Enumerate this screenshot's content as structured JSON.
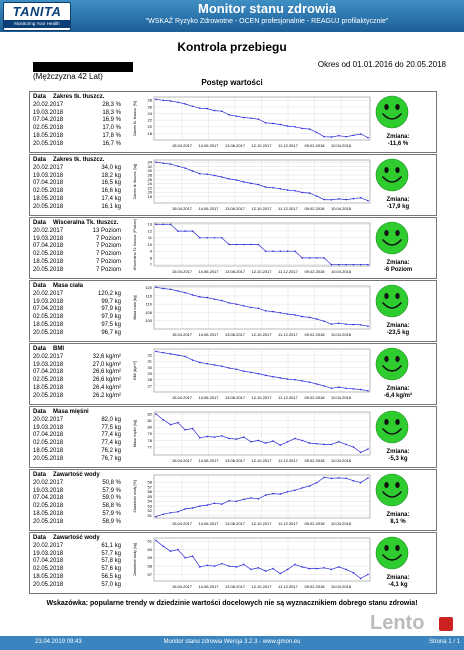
{
  "header": {
    "logo": "TANITA",
    "logo_sub": "Monitoring Your Health",
    "title": "Monitor stanu zdrowia",
    "subtitle": "\"WSKAŹ Ryzyko Zdrowotne - OCEN profesjonalnie - REAGUJ profilaktycznie\""
  },
  "page": {
    "title": "Kontrola przebiegu",
    "period": "Okres od 01.01.2016 do 20.05.2018",
    "person": "(Mężczyzna 42 Lat)",
    "subtitle": "Postęp wartości",
    "hint": "Wskazówka: popularne trendy w dziedzinie wartości docelowych nie są wyznacznikiem dobrego stanu zdrowia!"
  },
  "x_ticks": [
    "15.04.2017",
    "14.06.2017",
    "13.08.2017",
    "12.10.2017",
    "11.12.2017",
    "09.02.2018",
    "10.04.2018"
  ],
  "change_label": "Zmiana:",
  "colors": {
    "header": "#2c75b0",
    "line": "#2a2ad8",
    "face": "#2ecc2e",
    "footer": "#3a85bf"
  },
  "sections": [
    {
      "header": [
        "Data",
        "Zakres tk. tłuszcz."
      ],
      "rows": [
        [
          "20.02.2017",
          "28,3 %"
        ],
        [
          "19.03.2018",
          "18,3 %"
        ],
        [
          "07.04.2018",
          "16,9 %"
        ],
        [
          "02.05.2018",
          "17,0 %"
        ],
        [
          "18.05.2018",
          "17,8 %"
        ],
        [
          "20.05.2018",
          "16,7 %"
        ]
      ],
      "ylabel": "Zakres tk. tłuszcz. [%]",
      "yticks": [
        "28",
        "26",
        "24",
        "22",
        "20",
        "18"
      ],
      "ylim": [
        16,
        29
      ],
      "points": [
        28.3,
        28.0,
        27.8,
        27.4,
        26.9,
        26.2,
        25.6,
        25.5,
        24.9,
        24.7,
        23.6,
        23.2,
        22.8,
        22.6,
        22.3,
        21.2,
        21.0,
        20.7,
        20.2,
        20.0,
        19.5,
        19.3,
        18.3,
        17.0,
        16.9,
        17.3,
        17.0,
        17.4,
        17.8,
        16.7
      ],
      "change": "-11,6 %"
    },
    {
      "header": [
        "Data",
        "Zakres tk. tłuszcz."
      ],
      "rows": [
        [
          "20.02.2017",
          "34,0 kg"
        ],
        [
          "19.03.2018",
          "18,2 kg"
        ],
        [
          "07.04.2018",
          "16,5 kg"
        ],
        [
          "02.05.2018",
          "16,6 kg"
        ],
        [
          "18.05.2018",
          "17,4 kg"
        ],
        [
          "20.05.2018",
          "16,1 kg"
        ]
      ],
      "ylabel": "Zakres tk. tłuszcz. [kg]",
      "yticks": [
        "34",
        "32",
        "30",
        "28",
        "26",
        "24",
        "22",
        "20",
        "18"
      ],
      "ylim": [
        15,
        35
      ],
      "points": [
        34.0,
        33.5,
        33.1,
        32.1,
        31.2,
        29.9,
        28.6,
        28.4,
        27.8,
        27.1,
        26.2,
        25.7,
        24.8,
        24.1,
        23.6,
        22.4,
        22.1,
        21.6,
        21.0,
        20.7,
        19.9,
        19.6,
        18.2,
        16.6,
        16.5,
        16.9,
        16.6,
        17.0,
        17.4,
        16.1
      ],
      "change": "-17,9 kg"
    },
    {
      "header": [
        "Data",
        "Wisceralna Tk. tłuszcz."
      ],
      "rows": [
        [
          "20.02.2017",
          "13 Poziom"
        ],
        [
          "19.03.2018",
          "7 Poziom"
        ],
        [
          "07.04.2018",
          "7 Poziom"
        ],
        [
          "02.05.2018",
          "7 Poziom"
        ],
        [
          "18.05.2018",
          "7 Poziom"
        ],
        [
          "20.05.2018",
          "7 Poziom"
        ]
      ],
      "ylabel": "Wisceralna Tk. tłuszcz. [Poziom]",
      "yticks": [
        "13",
        "12",
        "11",
        "10",
        "9",
        "8",
        "7"
      ],
      "ylim": [
        6.8,
        13.2
      ],
      "points": [
        13,
        13,
        13,
        12,
        12,
        12,
        11,
        11,
        11,
        11,
        10,
        10,
        10,
        10,
        10,
        9,
        9,
        9,
        9,
        9,
        8,
        8,
        8,
        8,
        7,
        7,
        7,
        7,
        7,
        7
      ],
      "change": "-6 Poziom"
    },
    {
      "header": [
        "Data",
        "Masa ciała"
      ],
      "rows": [
        [
          "20.02.2017",
          "120,2 kg"
        ],
        [
          "19.03.2018",
          "99,7 kg"
        ],
        [
          "07.04.2018",
          "97,9 kg"
        ],
        [
          "02.05.2018",
          "97,9 kg"
        ],
        [
          "18.05.2018",
          "97,5 kg"
        ],
        [
          "20.05.2018",
          "96,7 kg"
        ]
      ],
      "ylabel": "Masa ciała [kg]",
      "yticks": [
        "120",
        "115",
        "110",
        "105",
        "100"
      ],
      "ylim": [
        95,
        121
      ],
      "points": [
        120.2,
        119.5,
        119.0,
        118.0,
        117.0,
        115.6,
        114.4,
        114.0,
        113.0,
        112.2,
        110.8,
        110.0,
        109.0,
        108.0,
        107.5,
        106.0,
        105.5,
        104.8,
        104.0,
        103.5,
        102.5,
        102.0,
        101.0,
        99.7,
        97.9,
        98.5,
        97.9,
        97.7,
        97.5,
        96.7
      ],
      "change": "-23,5 kg"
    },
    {
      "header": [
        "Data",
        "BMI"
      ],
      "rows": [
        [
          "20.02.2017",
          "32,6 kg/m²"
        ],
        [
          "19.03.2018",
          "27,0 kg/m²"
        ],
        [
          "07.04.2018",
          "26,6 kg/m²"
        ],
        [
          "02.05.2018",
          "26,6 kg/m²"
        ],
        [
          "18.05.2018",
          "26,4 kg/m²"
        ],
        [
          "20.05.2018",
          "26,2 kg/m²"
        ]
      ],
      "ylabel": "BMI [kg/m²]",
      "yticks": [
        "32",
        "31",
        "30",
        "29",
        "28",
        "27"
      ],
      "ylim": [
        26,
        33
      ],
      "points": [
        32.6,
        32.4,
        32.2,
        32.0,
        31.8,
        31.2,
        30.8,
        30.6,
        30.4,
        30.2,
        29.9,
        29.7,
        29.4,
        29.2,
        29.0,
        28.7,
        28.5,
        28.3,
        28.1,
        28.0,
        27.8,
        27.6,
        27.3,
        27.0,
        26.6,
        26.8,
        26.6,
        26.5,
        26.4,
        26.2
      ],
      "change": "-6,4 kg/m²"
    },
    {
      "header": [
        "Data",
        "Masa mięśni"
      ],
      "rows": [
        [
          "20.02.2017",
          "82,0 kg"
        ],
        [
          "19.03.2018",
          "77,5 kg"
        ],
        [
          "07.04.2018",
          "77,4 kg"
        ],
        [
          "02.05.2018",
          "77,4 kg"
        ],
        [
          "18.05.2018",
          "76,2 kg"
        ],
        [
          "20.05.2018",
          "76,7 kg"
        ]
      ],
      "ylabel": "Masa mięśni [kg]",
      "yticks": [
        "82",
        "81",
        "80",
        "79",
        "78",
        "77"
      ],
      "ylim": [
        75.8,
        82.3
      ],
      "points": [
        82.0,
        81.1,
        80.4,
        80.7,
        79.6,
        79.8,
        78.4,
        78.6,
        78.5,
        78.7,
        78.3,
        78.2,
        78.5,
        77.8,
        78.0,
        77.6,
        77.9,
        77.3,
        77.8,
        78.3,
        78.0,
        77.6,
        77.5,
        77.4,
        77.4,
        77.8,
        77.4,
        77.0,
        76.2,
        76.7
      ],
      "change": "-5,3 kg"
    },
    {
      "header": [
        "Data",
        "Zawartość wody"
      ],
      "rows": [
        [
          "20.02.2017",
          "50,8 %"
        ],
        [
          "19.03.2018",
          "57,9 %"
        ],
        [
          "07.04.2018",
          "59,0 %"
        ],
        [
          "02.05.2018",
          "58,8 %"
        ],
        [
          "18.05.2018",
          "57,9 %"
        ],
        [
          "20.05.2018",
          "58,9 %"
        ]
      ],
      "ylabel": "Zawartość wody [%]",
      "yticks": [
        "58",
        "57",
        "56",
        "55",
        "54",
        "53",
        "52",
        "51"
      ],
      "ylim": [
        50.5,
        59.5
      ],
      "points": [
        50.8,
        51.3,
        51.6,
        51.8,
        52.4,
        52.6,
        53.0,
        53.2,
        53.6,
        53.4,
        54.1,
        54.0,
        54.4,
        54.7,
        54.5,
        55.3,
        55.6,
        55.5,
        56.0,
        56.3,
        56.8,
        57.2,
        57.9,
        59.0,
        58.8,
        58.9,
        58.8,
        58.3,
        57.9,
        58.9
      ],
      "change": "8,1 %"
    },
    {
      "header": [
        "Data",
        "Zawartość wody"
      ],
      "rows": [
        [
          "20.02.2017",
          "61,1 kg"
        ],
        [
          "19.03.2018",
          "57,7 kg"
        ],
        [
          "07.04.2018",
          "57,8 kg"
        ],
        [
          "02.05.2018",
          "57,6 kg"
        ],
        [
          "18.05.2018",
          "56,5 kg"
        ],
        [
          "20.05.2018",
          "57,0 kg"
        ]
      ],
      "ylabel": "Zawartość wody [kg]",
      "yticks": [
        "61",
        "60",
        "59",
        "58",
        "57"
      ],
      "ylim": [
        56.2,
        61.4
      ],
      "points": [
        61.1,
        60.4,
        59.8,
        60.0,
        59.0,
        59.2,
        57.9,
        58.1,
        58.0,
        58.3,
        58.0,
        57.9,
        58.2,
        57.6,
        57.8,
        57.4,
        57.7,
        57.1,
        57.6,
        58.2,
        57.9,
        57.7,
        57.7,
        57.8,
        57.6,
        57.9,
        57.6,
        57.2,
        56.5,
        57.0
      ],
      "change": "-4,1 kg"
    }
  ],
  "footer": {
    "date": "23.04.2019 09:43",
    "version": "Monitor stanu zdrowia Wersja 3.2.3 - www.gmon.eu",
    "page": "Strona 1 / 1",
    "watermark": "Lento"
  }
}
